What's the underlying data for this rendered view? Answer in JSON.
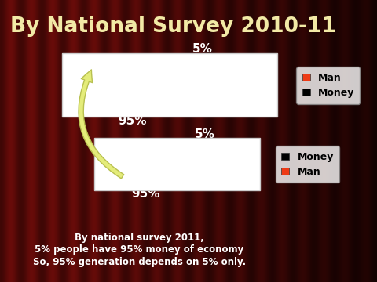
{
  "chart_data": [
    {
      "type": "pie",
      "title": "By National Survey 2010-11",
      "categories": [
        "Man",
        "Money"
      ],
      "values": [
        5,
        95
      ],
      "value_labels": [
        "5%",
        "95%"
      ],
      "colors": [
        "#ee3a16",
        "#000000"
      ],
      "legend": "center left"
    },
    {
      "type": "pie",
      "categories": [
        "Money",
        "Man"
      ],
      "values": [
        5,
        95
      ],
      "value_labels": [
        "5%",
        "95%"
      ],
      "colors": [
        "#000000",
        "#ee3a16"
      ],
      "legend": "center left",
      "annotations": [
        "By national survey 2011,",
        "5% people have 95% money of economy",
        "So, 95% generation depends on 5% only."
      ]
    }
  ]
}
